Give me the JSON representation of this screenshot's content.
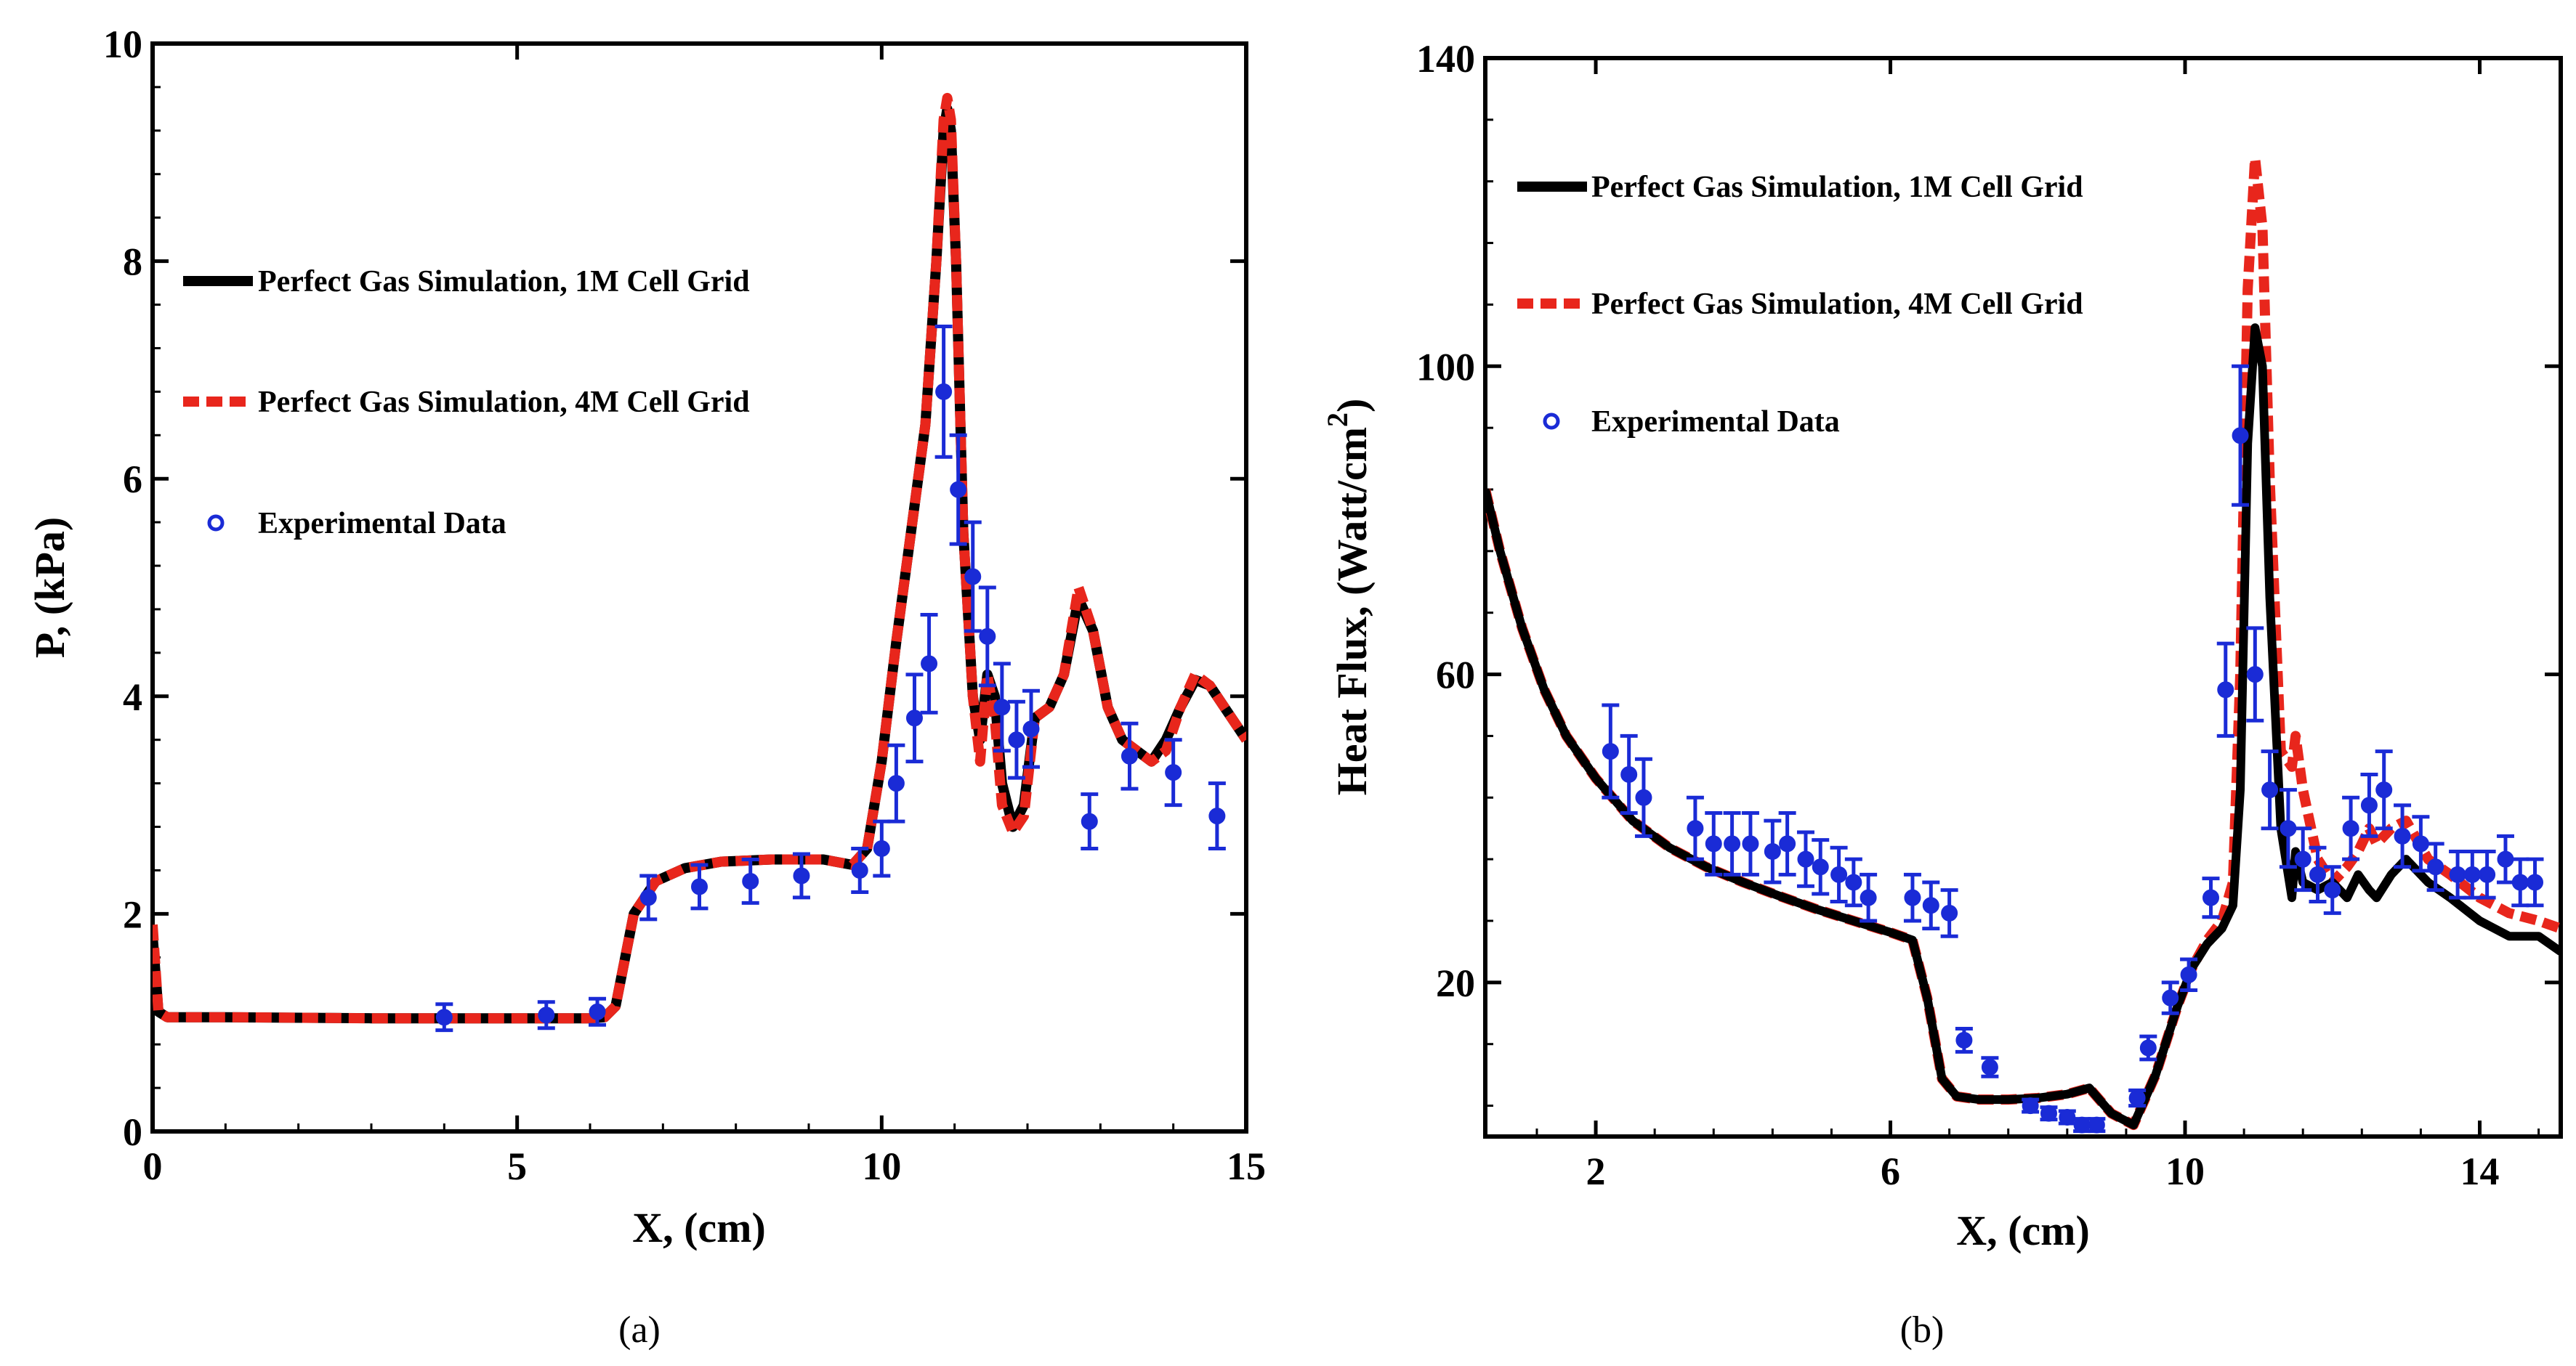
{
  "chart_data": [
    {
      "type": "line",
      "caption": "(a)",
      "xlabel": "X, (cm)",
      "ylabel": "P, (kPa)",
      "xlim": [
        0,
        15
      ],
      "ylim": [
        0,
        10
      ],
      "xticks": [
        0,
        5,
        10,
        15
      ],
      "yticks": [
        0,
        2,
        4,
        6,
        8,
        10
      ],
      "xtick_labels": [
        "0",
        "5",
        "10",
        "15"
      ],
      "ytick_labels": [
        "0",
        "2",
        "4",
        "6",
        "8",
        "10"
      ],
      "legend_position": "left, upper-middle",
      "legend": [
        {
          "label": "Perfect Gas Simulation, 1M Cell Grid",
          "style": "solid",
          "color": "#000000"
        },
        {
          "label": "Perfect Gas Simulation, 4M Cell Grid",
          "style": "dashed",
          "color": "#e8261c"
        },
        {
          "label": "Experimental Data",
          "style": "marker",
          "color": "#1a2bd6"
        }
      ],
      "series": [
        {
          "name": "Perfect Gas Simulation, 1M Cell Grid",
          "color": "#000000",
          "x": [
            0,
            0.08,
            0.2,
            1,
            3,
            5,
            6,
            6.2,
            6.35,
            6.6,
            6.9,
            7.3,
            7.8,
            8.5,
            9.2,
            9.6,
            9.8,
            10.0,
            10.2,
            10.4,
            10.6,
            10.75,
            10.85,
            10.9,
            10.95,
            11.02,
            11.12,
            11.25,
            11.35,
            11.45,
            11.55,
            11.65,
            11.8,
            11.95,
            12.1,
            12.3,
            12.5,
            12.7,
            12.9,
            13.1,
            13.3,
            13.5,
            13.7,
            13.9,
            14.1,
            14.3,
            14.5,
            14.7,
            14.9,
            15.0
          ],
          "values": [
            1.8,
            1.1,
            1.05,
            1.05,
            1.04,
            1.04,
            1.04,
            1.05,
            1.15,
            2.0,
            2.3,
            2.42,
            2.48,
            2.5,
            2.5,
            2.45,
            2.6,
            3.4,
            4.5,
            5.5,
            6.5,
            8.0,
            9.2,
            9.4,
            9.2,
            8.0,
            5.5,
            4.0,
            3.6,
            4.2,
            4.0,
            3.2,
            2.8,
            3.0,
            3.8,
            3.9,
            4.2,
            4.9,
            4.6,
            3.9,
            3.6,
            3.5,
            3.4,
            3.6,
            3.9,
            4.15,
            4.1,
            3.9,
            3.7,
            3.6
          ]
        },
        {
          "name": "Perfect Gas Simulation, 4M Cell Grid",
          "color": "#e8261c",
          "x": [
            0,
            0.08,
            0.2,
            1,
            3,
            5,
            6,
            6.2,
            6.35,
            6.6,
            6.9,
            7.3,
            7.8,
            8.5,
            9.2,
            9.6,
            9.8,
            10.0,
            10.2,
            10.4,
            10.6,
            10.75,
            10.85,
            10.9,
            10.95,
            11.02,
            11.12,
            11.25,
            11.35,
            11.45,
            11.55,
            11.65,
            11.8,
            11.95,
            12.1,
            12.3,
            12.5,
            12.7,
            12.9,
            13.1,
            13.3,
            13.5,
            13.7,
            13.9,
            14.1,
            14.3,
            14.5,
            14.7,
            14.9,
            15.0
          ],
          "values": [
            1.9,
            1.1,
            1.05,
            1.05,
            1.04,
            1.04,
            1.04,
            1.05,
            1.15,
            2.0,
            2.3,
            2.42,
            2.48,
            2.5,
            2.5,
            2.45,
            2.6,
            3.4,
            4.5,
            5.5,
            6.5,
            8.0,
            9.3,
            9.5,
            9.3,
            8.0,
            5.5,
            4.0,
            3.4,
            4.2,
            3.8,
            3.0,
            2.75,
            2.9,
            3.8,
            3.9,
            4.2,
            5.0,
            4.6,
            3.9,
            3.6,
            3.5,
            3.4,
            3.5,
            3.9,
            4.2,
            4.1,
            3.9,
            3.7,
            3.6
          ]
        },
        {
          "name": "Experimental Data",
          "color": "#1a2bd6",
          "type": "scatter",
          "x": [
            4.0,
            5.4,
            6.1,
            6.8,
            7.5,
            8.2,
            8.9,
            9.7,
            10.0,
            10.2,
            10.45,
            10.65,
            10.85,
            11.05,
            11.25,
            11.45,
            11.65,
            11.85,
            12.05,
            12.85,
            13.4,
            14.0,
            14.6
          ],
          "values": [
            1.05,
            1.07,
            1.1,
            2.15,
            2.25,
            2.3,
            2.35,
            2.4,
            2.6,
            3.2,
            3.8,
            4.3,
            6.8,
            5.9,
            5.1,
            4.55,
            3.9,
            3.6,
            3.7,
            2.85,
            3.45,
            3.3,
            2.9
          ],
          "err": [
            0.12,
            0.12,
            0.12,
            0.2,
            0.2,
            0.2,
            0.2,
            0.2,
            0.25,
            0.35,
            0.4,
            0.45,
            0.6,
            0.5,
            0.5,
            0.45,
            0.4,
            0.35,
            0.35,
            0.25,
            0.3,
            0.3,
            0.3
          ]
        }
      ]
    },
    {
      "type": "line",
      "caption": "(b)",
      "xlabel": "X, (cm)",
      "ylabel": "Heat Flux, (Watt/cm",
      "ylabel_superscript": "2",
      "ylabel_close": ")",
      "xlim": [
        0.5,
        15.1
      ],
      "ylim": [
        0,
        140
      ],
      "xticks": [
        2,
        6,
        10,
        14
      ],
      "yticks": [
        20,
        60,
        100,
        140
      ],
      "xtick_labels": [
        "2",
        "6",
        "10",
        "14"
      ],
      "ytick_labels": [
        "20",
        "60",
        "100",
        "140"
      ],
      "legend_position": "top-left",
      "legend": [
        {
          "label": "Perfect Gas Simulation, 1M Cell Grid",
          "style": "solid",
          "color": "#000000"
        },
        {
          "label": "Perfect Gas Simulation, 4M Cell Grid",
          "style": "dashed",
          "color": "#e8261c"
        },
        {
          "label": "Experimental Data",
          "style": "marker",
          "color": "#1a2bd6"
        }
      ],
      "series": [
        {
          "name": "Perfect Gas Simulation, 1M Cell Grid",
          "color": "#000000",
          "x": [
            0.5,
            0.7,
            1.0,
            1.3,
            1.6,
            2.0,
            2.5,
            3.0,
            3.5,
            4.0,
            4.5,
            5.0,
            5.5,
            6.0,
            6.3,
            6.5,
            6.7,
            6.9,
            7.2,
            7.6,
            8.0,
            8.4,
            8.7,
            9.0,
            9.3,
            9.6,
            9.9,
            10.1,
            10.3,
            10.5,
            10.65,
            10.75,
            10.85,
            10.95,
            11.05,
            11.15,
            11.3,
            11.45,
            11.5,
            11.6,
            11.8,
            12.0,
            12.2,
            12.35,
            12.5,
            12.6,
            12.8,
            13.0,
            13.3,
            13.6,
            14.0,
            14.4,
            14.8,
            15.1
          ],
          "values": [
            84,
            76,
            66,
            58,
            52,
            46.5,
            41,
            37.5,
            35,
            33,
            31.2,
            29.5,
            28,
            26.5,
            25.5,
            18,
            7.5,
            5.2,
            4.8,
            4.8,
            5.0,
            5.5,
            6.3,
            3.0,
            1.5,
            8,
            17,
            22,
            25,
            27,
            30,
            45,
            90,
            105,
            100,
            70,
            40,
            31,
            37,
            33,
            32,
            33,
            31,
            34,
            32,
            31,
            34,
            36,
            33,
            31,
            28,
            26,
            26,
            24
          ]
        },
        {
          "name": "Perfect Gas Simulation, 4M Cell Grid",
          "color": "#e8261c",
          "x": [
            0.5,
            0.7,
            1.0,
            1.3,
            1.6,
            2.0,
            2.5,
            3.0,
            3.5,
            4.0,
            4.5,
            5.0,
            5.5,
            6.0,
            6.3,
            6.5,
            6.7,
            6.9,
            7.2,
            7.6,
            8.0,
            8.4,
            8.7,
            9.0,
            9.3,
            9.6,
            9.9,
            10.1,
            10.3,
            10.5,
            10.65,
            10.75,
            10.85,
            10.95,
            11.05,
            11.15,
            11.3,
            11.45,
            11.5,
            11.6,
            11.8,
            12.0,
            12.2,
            12.35,
            12.5,
            12.6,
            12.8,
            13.0,
            13.3,
            13.6,
            14.0,
            14.4,
            14.8,
            15.1
          ],
          "values": [
            84,
            76,
            66,
            58,
            52,
            46.5,
            41,
            37.5,
            35,
            33,
            31.2,
            29.5,
            28,
            26.5,
            25.5,
            18,
            7.5,
            5.2,
            4.8,
            4.8,
            5.0,
            5.5,
            6.3,
            3.0,
            1.5,
            8,
            17,
            22,
            25.5,
            28,
            33,
            60,
            110,
            127,
            118,
            85,
            50,
            48,
            52,
            45,
            36,
            33,
            35,
            37,
            40,
            38,
            40,
            41,
            36,
            34,
            31,
            29,
            28,
            27
          ]
        },
        {
          "name": "Experimental Data",
          "color": "#1a2bd6",
          "type": "scatter",
          "x": [
            2.2,
            2.45,
            2.65,
            3.35,
            3.6,
            3.85,
            4.1,
            4.4,
            4.6,
            4.85,
            5.05,
            5.3,
            5.5,
            5.7,
            6.3,
            6.55,
            6.8,
            7.0,
            7.35,
            7.9,
            8.15,
            8.4,
            8.6,
            8.8,
            9.35,
            9.5,
            9.8,
            10.05,
            10.35,
            10.55,
            10.75,
            10.95,
            11.15,
            11.4,
            11.6,
            11.8,
            12.0,
            12.25,
            12.5,
            12.7,
            12.95,
            13.2,
            13.4,
            13.7,
            13.9,
            14.1,
            14.35,
            14.55,
            14.75
          ],
          "values": [
            50,
            47,
            44,
            40,
            38,
            38,
            38,
            37,
            38,
            36,
            35,
            34,
            33,
            31,
            31,
            30,
            29,
            12.5,
            9,
            4,
            3,
            2.5,
            1.5,
            1.5,
            5,
            11.5,
            18,
            21,
            31,
            58,
            91,
            60,
            45,
            40,
            36,
            34,
            32,
            40,
            43,
            45,
            39,
            38,
            35,
            34,
            34,
            34,
            36,
            33,
            33
          ],
          "err": [
            6,
            5,
            5,
            4,
            4,
            4,
            4,
            4,
            4,
            3.5,
            3.5,
            3.5,
            3,
            3,
            3,
            3,
            3,
            1.5,
            1.2,
            0.8,
            0.8,
            0.8,
            0.8,
            0.8,
            1,
            1.5,
            2,
            2,
            2.5,
            6,
            9,
            6,
            5,
            5,
            4,
            3.5,
            3,
            4,
            4,
            5,
            4,
            3.5,
            3,
            3,
            3,
            3,
            3,
            3,
            3
          ]
        }
      ]
    }
  ]
}
